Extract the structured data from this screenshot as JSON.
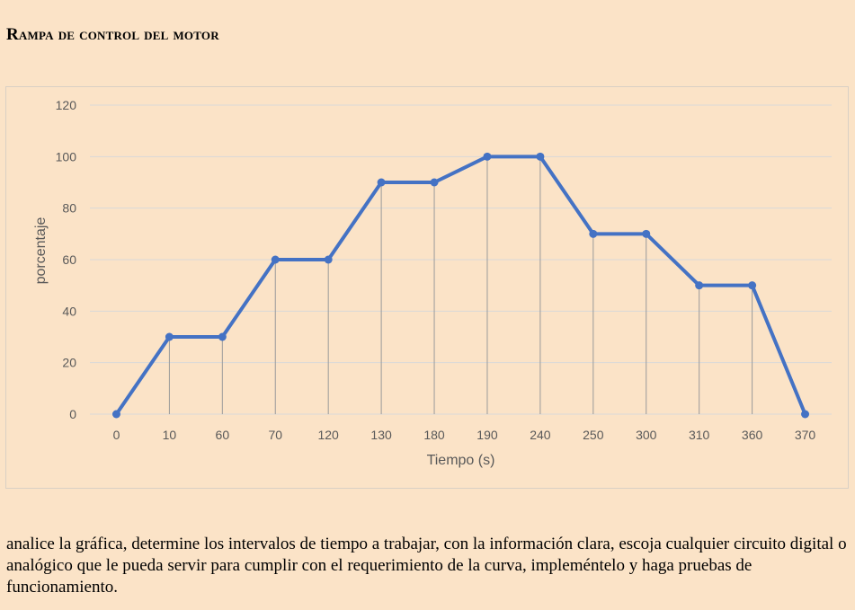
{
  "document": {
    "title": "Rampa de control del motor",
    "description": "analice la gráfica, determine los intervalos de tiempo a trabajar, con la información clara, escoja cualquier circuito digital o analógico que le pueda servir para cumplir con el requerimiento de la curva, impleméntelo y haga pruebas de funcionamiento."
  },
  "chart_data": {
    "type": "line",
    "title": "",
    "xlabel": "Tiempo (s)",
    "ylabel": "porcentaje",
    "categories": [
      "0",
      "10",
      "60",
      "70",
      "120",
      "130",
      "180",
      "190",
      "240",
      "250",
      "300",
      "310",
      "360",
      "370"
    ],
    "series": [
      {
        "values": [
          0,
          30,
          30,
          60,
          60,
          90,
          90,
          100,
          100,
          70,
          70,
          50,
          50,
          0
        ]
      }
    ],
    "ylim": [
      0,
      120
    ],
    "yticks": [
      0,
      20,
      40,
      60,
      80,
      100,
      120
    ],
    "grid": "horizontal",
    "drop_lines": true,
    "legend": "none",
    "colors": {
      "line": "#4472c4",
      "grid": "#d9d9d9",
      "drop": "#9a9a9a",
      "axis_text": "#595959"
    }
  }
}
